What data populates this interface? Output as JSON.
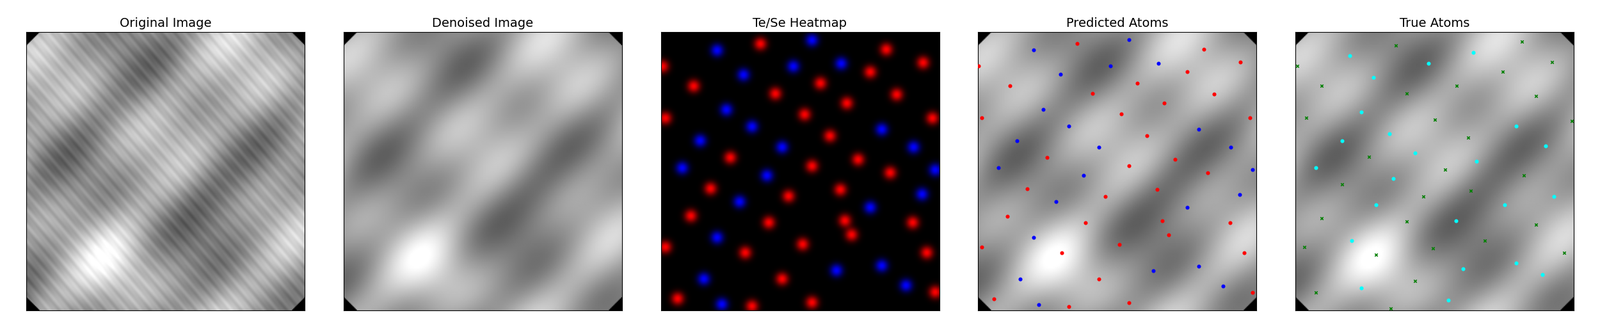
{
  "chart_data": [
    {
      "type": "image",
      "title": "Original Image",
      "xlim": [
        0,
        128
      ],
      "ylim": [
        128,
        0
      ],
      "tick_labels": false
    },
    {
      "type": "image",
      "title": "Denoised Image",
      "xlim": [
        0,
        128
      ],
      "ylim": [
        128,
        0
      ],
      "tick_labels": false
    },
    {
      "type": "heatmap",
      "title": "Te/Se Heatmap",
      "xlim": [
        0,
        128
      ],
      "ylim": [
        128,
        0
      ],
      "tick_labels": false,
      "series": [
        {
          "color": "red",
          "x": [
            0.4,
            45.6,
            103.7,
            120.7,
            14.8,
            73.3,
            96.3,
            52.5,
            108.5,
            1.7,
            66.0,
            85.5,
            125.0,
            77.7,
            31.7,
            90.7,
            69.4,
            105.5,
            22.6,
            58.6,
            82.5,
            13.5,
            49.5,
            84.6,
            115.9,
            1.7,
            38.6,
            65.1,
            87.7,
            122.4,
            55.6,
            7.4,
            41.7,
            69.4,
            126.3
          ],
          "y": [
            15.6,
            5.2,
            7.8,
            13.9,
            24.7,
            23.4,
            18.2,
            28.2,
            28.6,
            39.5,
            37.8,
            32.6,
            39.5,
            47.7,
            57.7,
            58.6,
            61.6,
            64.7,
            72.0,
            75.5,
            72.5,
            84.6,
            87.7,
            86.8,
            87.7,
            99.0,
            101.6,
            97.7,
            93.3,
            101.6,
            113.7,
            122.8,
            126.3,
            124.6,
            119.8
          ]
        },
        {
          "color": "blue",
          "x": [
            25.6,
            69.4,
            37.8,
            60.8,
            82.9,
            29.9,
            17.8,
            41.7,
            101.6,
            55.6,
            116.3,
            9.5,
            48.6,
            126.3,
            36.0,
            96.3,
            120.2,
            25.6,
            19.5,
            80.7,
            101.6,
            112.8,
            27.8
          ],
          "y": [
            8.2,
            3.5,
            19.5,
            15.6,
            14.3,
            35.6,
            49.9,
            43.4,
            44.7,
            52.9,
            52.9,
            62.5,
            66.0,
            63.4,
            78.1,
            80.7,
            74.6,
            94.6,
            113.7,
            109.8,
            107.6,
            116.7,
            125.4
          ]
        }
      ]
    },
    {
      "type": "scatter",
      "title": "Predicted Atoms",
      "xlim": [
        0,
        128
      ],
      "ylim": [
        128,
        0
      ],
      "tick_labels": false,
      "series": [
        {
          "color": "red",
          "marker": "circle",
          "x": [
            0.4,
            45.6,
            103.7,
            120.7,
            14.8,
            73.3,
            96.3,
            52.5,
            108.5,
            1.7,
            66.0,
            85.5,
            125.0,
            77.7,
            31.7,
            90.7,
            69.4,
            105.5,
            22.6,
            58.6,
            82.5,
            13.5,
            49.5,
            84.6,
            115.9,
            1.7,
            38.6,
            65.1,
            87.7,
            122.4,
            55.6,
            7.4,
            41.7,
            69.4,
            126.3
          ],
          "y": [
            15.6,
            5.2,
            7.8,
            13.9,
            24.7,
            23.4,
            18.2,
            28.2,
            28.6,
            39.5,
            37.8,
            32.6,
            39.5,
            47.7,
            57.7,
            58.6,
            61.6,
            64.7,
            72.0,
            75.5,
            72.5,
            84.6,
            87.7,
            86.8,
            87.7,
            99.0,
            101.6,
            97.7,
            93.3,
            101.6,
            113.7,
            122.8,
            126.3,
            124.6,
            119.8
          ]
        },
        {
          "color": "blue",
          "marker": "circle",
          "x": [
            25.6,
            69.4,
            37.8,
            60.8,
            82.9,
            29.9,
            17.8,
            41.7,
            101.6,
            55.6,
            116.3,
            9.5,
            48.6,
            126.3,
            36.0,
            96.3,
            120.2,
            25.6,
            19.5,
            80.7,
            101.6,
            112.8,
            27.8
          ],
          "y": [
            8.2,
            3.5,
            19.5,
            15.6,
            14.3,
            35.6,
            49.9,
            43.4,
            44.7,
            52.9,
            52.9,
            62.5,
            66.0,
            63.4,
            78.1,
            80.7,
            74.6,
            94.6,
            113.7,
            109.8,
            107.6,
            116.7,
            125.4
          ]
        }
      ]
    },
    {
      "type": "scatter",
      "title": "True Atoms",
      "xlim": [
        0,
        128
      ],
      "ylim": [
        128,
        0
      ],
      "tick_labels": false,
      "series": [
        {
          "color": "green",
          "marker": "x",
          "x": [
            46.4,
            104.2,
            0.9,
            12.2,
            74.2,
            95.5,
            118.0,
            51.2,
            110.7,
            5.2,
            64.2,
            33.9,
            79.4,
            105.0,
            69.0,
            21.7,
            59.0,
            80.7,
            12.2,
            51.2,
            110.7,
            4.3,
            37.3,
            63.4,
            87.2,
            123.7,
            55.1,
            9.5,
            43.8,
            127.2
          ],
          "y": [
            6.1,
            4.3,
            15.6,
            24.7,
            24.7,
            18.2,
            13.9,
            28.2,
            29.5,
            39.5,
            40.4,
            57.3,
            48.6,
            66.0,
            63.4,
            69.9,
            75.5,
            72.9,
            85.5,
            87.2,
            88.6,
            98.9,
            102.4,
            99.4,
            95.9,
            101.6,
            114.6,
            119.8,
            127.2,
            40.8
          ]
        },
        {
          "color": "cyan",
          "marker": "circle",
          "x": [
            25.2,
            61.2,
            82.0,
            36.0,
            30.4,
            21.7,
            43.4,
            55.1,
            101.6,
            115.0,
            9.5,
            45.1,
            37.3,
            73.8,
            96.3,
            118.9,
            26.0,
            77.3,
            101.6,
            113.7,
            30.4,
            70.3,
            83.3
          ],
          "y": [
            10.9,
            14.3,
            9.5,
            20.8,
            36.9,
            49.9,
            46.9,
            55.6,
            43.4,
            52.5,
            62.5,
            67.3,
            79.4,
            86.8,
            79.4,
            75.5,
            95.9,
            108.9,
            106.3,
            111.5,
            117.6,
            123.3,
            59.5
          ]
        }
      ]
    }
  ]
}
